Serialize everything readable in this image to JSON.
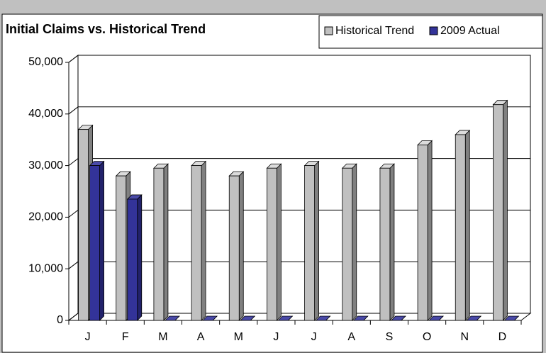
{
  "chart_data": {
    "type": "bar",
    "title": "Initial Claims vs. Historical Trend",
    "categories": [
      "J",
      "F",
      "M",
      "A",
      "M",
      "J",
      "J",
      "A",
      "S",
      "O",
      "N",
      "D"
    ],
    "series": [
      {
        "name": "Historical Trend",
        "color": "#c0c0c0",
        "values": [
          37000,
          28000,
          29500,
          30000,
          28000,
          29500,
          30000,
          29500,
          29500,
          34000,
          36000,
          41800
        ]
      },
      {
        "name": "2009 Actual",
        "color": "#333399",
        "values": [
          30000,
          23500,
          0,
          0,
          0,
          0,
          0,
          0,
          0,
          0,
          0,
          0
        ]
      }
    ],
    "ylim": [
      0,
      50000
    ],
    "yticks": [
      0,
      {
        "value": 10000,
        "label": "10,000"
      },
      {
        "value": 20000,
        "label": "20,000"
      },
      {
        "value": 30000,
        "label": "30,000"
      },
      {
        "value": 40000,
        "label": "40,000"
      },
      {
        "value": 50000,
        "label": "50,000"
      }
    ],
    "grid": true,
    "legend": "top-right"
  }
}
